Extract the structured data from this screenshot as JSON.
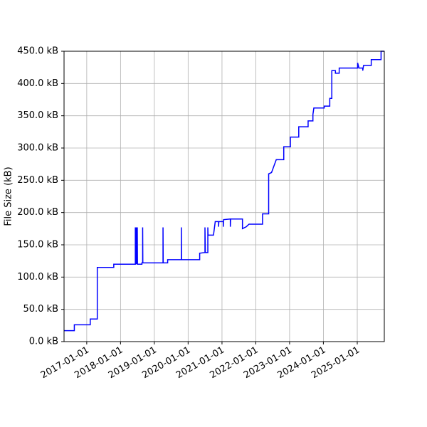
{
  "chart_data": {
    "type": "line",
    "ylabel": "File Size (kB)",
    "grid": true,
    "xlim": [
      "2016-05-01",
      "2025-10-20"
    ],
    "ylim": [
      0,
      450
    ],
    "xticks": [
      "2017-01-01",
      "2018-01-01",
      "2019-01-01",
      "2020-01-01",
      "2021-01-01",
      "2022-01-01",
      "2023-01-01",
      "2024-01-01",
      "2025-01-01"
    ],
    "yticks": [
      {
        "value": 0,
        "label": "0.0 kB"
      },
      {
        "value": 50,
        "label": "50.0 kB"
      },
      {
        "value": 100,
        "label": "100.0 kB"
      },
      {
        "value": 150,
        "label": "150.0 kB"
      },
      {
        "value": 200,
        "label": "200.0 kB"
      },
      {
        "value": 250,
        "label": "250.0 kB"
      },
      {
        "value": 300,
        "label": "300.0 kB"
      },
      {
        "value": 350,
        "label": "350.0 kB"
      },
      {
        "value": 400,
        "label": "400.0 kB"
      },
      {
        "value": 450,
        "label": "450.0 kB"
      }
    ],
    "x": [
      "2016-05-01",
      "2016-08-20",
      "2016-08-20",
      "2017-02-08",
      "2017-02-08",
      "2017-04-25",
      "2017-04-25",
      "2017-10-20",
      "2017-10-20",
      "2018-06-10",
      "2018-06-10",
      "2018-06-12",
      "2018-06-20",
      "2018-06-22",
      "2018-07-01",
      "2018-07-03",
      "2018-08-20",
      "2018-08-20",
      "2018-08-28",
      "2018-08-28",
      "2018-08-30",
      "2019-04-05",
      "2019-04-05",
      "2019-04-07",
      "2019-05-25",
      "2019-05-25",
      "2019-10-20",
      "2019-10-20",
      "2019-10-22",
      "2020-05-05",
      "2020-05-05",
      "2020-07-01",
      "2020-07-01",
      "2020-07-05",
      "2020-08-01",
      "2020-08-01",
      "2020-08-03",
      "2020-10-01",
      "2020-10-20",
      "2020-11-25",
      "2020-11-25",
      "2020-11-28",
      "2021-01-15",
      "2021-01-15",
      "2021-01-18",
      "2021-04-01",
      "2021-04-01",
      "2021-04-04",
      "2021-08-10",
      "2021-08-10",
      "2021-09-20",
      "2021-10-20",
      "2022-03-15",
      "2022-03-15",
      "2022-05-20",
      "2022-05-20",
      "2022-06-20",
      "2022-08-10",
      "2022-10-30",
      "2022-10-30",
      "2023-01-10",
      "2023-01-10",
      "2023-04-10",
      "2023-04-10",
      "2023-07-20",
      "2023-07-20",
      "2023-09-10",
      "2023-09-10",
      "2023-09-20",
      "2024-01-10",
      "2024-01-10",
      "2024-03-10",
      "2024-03-10",
      "2024-04-01",
      "2024-04-01",
      "2024-05-10",
      "2024-05-10",
      "2024-06-20",
      "2024-06-20",
      "2025-01-05",
      "2025-01-05",
      "2025-01-20",
      "2025-03-01",
      "2025-03-01",
      "2025-03-10",
      "2025-06-01",
      "2025-06-01",
      "2025-09-15",
      "2025-09-15",
      "2025-10-20"
    ],
    "series": [
      {
        "color": "#0000ff",
        "values": [
          17,
          17,
          26,
          26,
          35,
          35,
          115,
          115,
          120,
          120,
          177,
          120,
          177,
          120,
          177,
          120,
          120,
          122,
          122,
          177,
          122,
          122,
          177,
          122,
          122,
          127,
          127,
          177,
          127,
          127,
          137,
          138,
          177,
          138,
          138,
          177,
          165,
          165,
          186,
          186,
          178,
          186,
          186,
          178,
          189,
          190,
          178,
          190,
          190,
          175,
          178,
          182,
          182,
          198,
          198,
          260,
          262,
          282,
          282,
          302,
          302,
          317,
          317,
          333,
          333,
          342,
          342,
          352,
          362,
          362,
          365,
          365,
          377,
          377,
          420,
          420,
          416,
          416,
          424,
          424,
          432,
          424,
          424,
          420,
          428,
          428,
          437,
          437,
          450,
          450
        ]
      }
    ]
  }
}
